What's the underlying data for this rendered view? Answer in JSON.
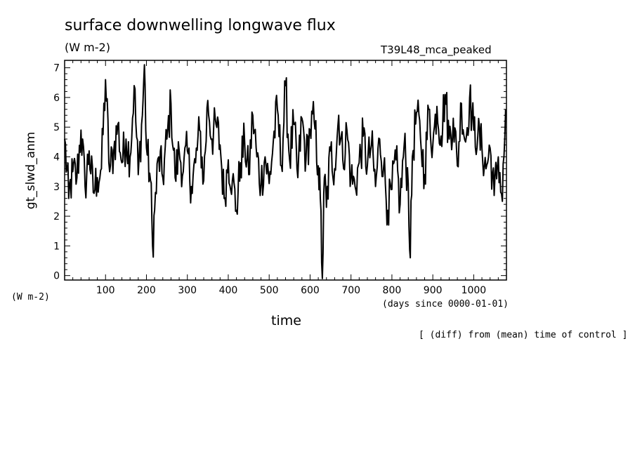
{
  "header": {
    "title": "surface downwelling longwave flux",
    "units_top": "(W m-2)",
    "run_name": "T39L48_mca_peaked",
    "units_left": "(W m-2)",
    "x_units": "(days since 0000-01-01)",
    "note": "[ (diff) from (mean) time of control ]"
  },
  "chart_data": {
    "type": "line",
    "title": "surface downwelling longwave flux",
    "xlabel": "time",
    "ylabel": "gt_slwd_anm",
    "xlim": [
      0,
      1080
    ],
    "ylim": [
      -0.15,
      7.25
    ],
    "xticks": [
      100,
      200,
      300,
      400,
      500,
      600,
      700,
      800,
      900,
      1000
    ],
    "yticks": [
      0,
      1,
      2,
      3,
      4,
      5,
      6,
      7
    ],
    "series": [
      {
        "x": [
          0,
          10,
          20,
          30,
          40,
          50,
          60,
          70,
          80,
          90,
          100,
          110,
          120,
          130,
          140,
          150,
          160,
          170,
          180,
          190,
          195,
          200,
          210,
          215,
          220,
          230,
          240,
          250,
          260,
          270,
          280,
          290,
          300,
          310,
          320,
          330,
          340,
          350,
          360,
          370,
          380,
          390,
          400,
          410,
          420,
          430,
          440,
          450,
          460,
          470,
          480,
          490,
          500,
          510,
          520,
          530,
          540,
          550,
          560,
          570,
          580,
          590,
          600,
          610,
          620,
          625,
          630,
          635,
          640,
          650,
          660,
          670,
          680,
          690,
          700,
          710,
          720,
          730,
          740,
          750,
          760,
          770,
          780,
          790,
          800,
          810,
          820,
          830,
          840,
          845,
          850,
          860,
          870,
          880,
          890,
          900,
          910,
          920,
          930,
          940,
          950,
          960,
          970,
          980,
          990,
          1000,
          1010,
          1020,
          1030,
          1040,
          1050,
          1060,
          1070,
          1078
        ],
        "values": [
          4.6,
          2.6,
          3.5,
          3.3,
          4.9,
          3.0,
          4.2,
          2.8,
          3.3,
          3.6,
          6.6,
          3.5,
          4.2,
          5.1,
          3.8,
          4.6,
          4.0,
          6.4,
          3.4,
          5.4,
          7.1,
          4.3,
          3.2,
          1.0,
          2.2,
          4.0,
          3.3,
          4.6,
          5.8,
          3.3,
          4.2,
          3.5,
          4.2,
          3.0,
          3.8,
          4.9,
          3.2,
          5.9,
          4.6,
          5.1,
          4.4,
          2.6,
          3.9,
          3.2,
          2.2,
          3.8,
          4.5,
          3.4,
          5.4,
          4.0,
          3.1,
          4.0,
          3.1,
          4.5,
          5.6,
          3.7,
          6.4,
          3.9,
          5.1,
          3.3,
          5.3,
          3.9,
          4.9,
          5.2,
          3.7,
          2.6,
          -0.1,
          3.3,
          2.3,
          4.2,
          3.6,
          5.4,
          3.9,
          4.9,
          3.3,
          3.0,
          3.8,
          4.7,
          3.7,
          4.4,
          3.0,
          4.6,
          3.7,
          2.2,
          2.9,
          3.9,
          2.4,
          4.4,
          3.1,
          0.6,
          4.0,
          5.5,
          4.6,
          3.4,
          5.6,
          4.4,
          5.7,
          4.7,
          6.1,
          4.6,
          5.3,
          3.7,
          5.8,
          4.5,
          6.0,
          4.9,
          4.7,
          4.3,
          3.6,
          4.3,
          2.7,
          4.0,
          2.5,
          5.6
        ]
      }
    ],
    "grid": false,
    "line_color": "#000000"
  }
}
